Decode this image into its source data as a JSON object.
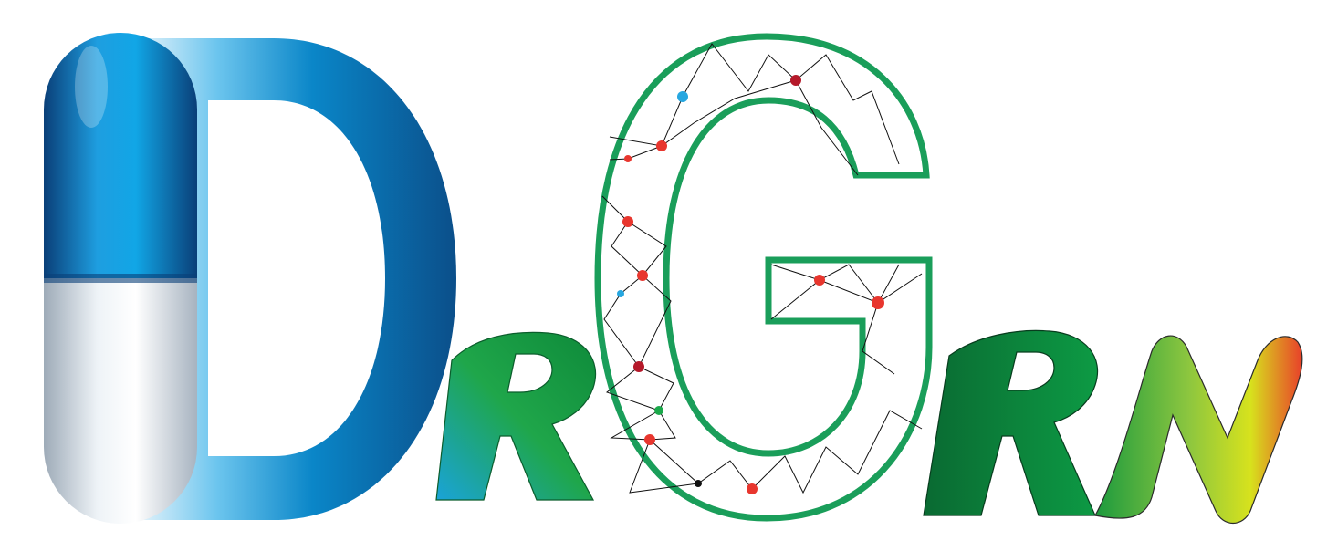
{
  "logo": {
    "text": "DrGRN",
    "letters": [
      "D",
      "R",
      "G",
      "R",
      "N"
    ],
    "colors": {
      "pill_cap_top": "#0a6fb4",
      "pill_cap_bottom": "#0a4f86",
      "pill_body": "#dfe6ee",
      "d_blue": "#0a6fb4",
      "d_light": "#bfe4f6",
      "green_dark": "#0a7a3a",
      "green": "#1fa64a",
      "outline_green": "#1a9e5a",
      "network_line": "#111111",
      "node_red": "#e8362e",
      "node_darkred": "#b5192a",
      "node_blue": "#27a7e0",
      "node_green": "#1aa84a",
      "node_black": "#111111",
      "n_yellow": "#d7e21d",
      "n_red": "#e8402a",
      "cyan": "#1aa3d8"
    }
  }
}
